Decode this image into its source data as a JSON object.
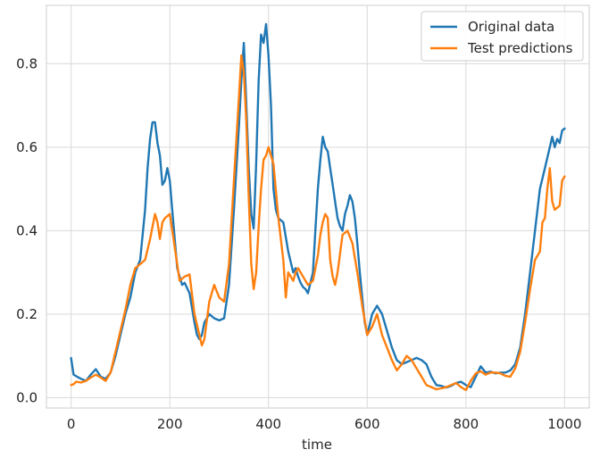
{
  "chart_data": {
    "type": "line",
    "title": "",
    "xlabel": "time",
    "ylabel": "",
    "xlim": [
      -50,
      1050
    ],
    "ylim": [
      -0.025,
      0.94
    ],
    "xticks": [
      0,
      200,
      400,
      600,
      800,
      1000
    ],
    "xtick_labels": [
      "0",
      "200",
      "400",
      "600",
      "800",
      "1000"
    ],
    "yticks": [
      0.0,
      0.2,
      0.4,
      0.6,
      0.8
    ],
    "ytick_labels": [
      "0.0",
      "0.2",
      "0.4",
      "0.6",
      "0.8"
    ],
    "grid": true,
    "legend_position": "top-right",
    "series": [
      {
        "name": "Original data",
        "color": "#1f77b4",
        "x": [
          0,
          5,
          12,
          20,
          30,
          40,
          50,
          60,
          70,
          80,
          90,
          100,
          110,
          120,
          130,
          140,
          150,
          155,
          160,
          165,
          170,
          175,
          180,
          185,
          190,
          195,
          200,
          205,
          210,
          215,
          220,
          225,
          230,
          240,
          250,
          255,
          260,
          265,
          270,
          280,
          290,
          300,
          310,
          320,
          330,
          340,
          345,
          350,
          355,
          360,
          365,
          370,
          375,
          380,
          385,
          390,
          395,
          400,
          405,
          410,
          415,
          420,
          430,
          440,
          450,
          455,
          460,
          465,
          470,
          475,
          480,
          490,
          495,
          500,
          505,
          510,
          515,
          520,
          525,
          530,
          535,
          540,
          545,
          550,
          555,
          560,
          565,
          570,
          575,
          580,
          585,
          590,
          595,
          600,
          610,
          620,
          630,
          640,
          650,
          660,
          670,
          680,
          690,
          700,
          710,
          720,
          730,
          740,
          750,
          760,
          770,
          780,
          790,
          800,
          810,
          820,
          830,
          840,
          850,
          860,
          870,
          880,
          890,
          900,
          910,
          920,
          930,
          940,
          950,
          960,
          970,
          975,
          980,
          985,
          990,
          995,
          1000
        ],
        "y": [
          0.095,
          0.055,
          0.05,
          0.045,
          0.04,
          0.055,
          0.068,
          0.05,
          0.045,
          0.06,
          0.1,
          0.15,
          0.2,
          0.24,
          0.3,
          0.33,
          0.45,
          0.55,
          0.62,
          0.66,
          0.66,
          0.61,
          0.58,
          0.51,
          0.52,
          0.55,
          0.52,
          0.45,
          0.38,
          0.31,
          0.29,
          0.27,
          0.275,
          0.25,
          0.18,
          0.15,
          0.14,
          0.15,
          0.18,
          0.2,
          0.19,
          0.185,
          0.19,
          0.27,
          0.45,
          0.65,
          0.76,
          0.85,
          0.7,
          0.55,
          0.44,
          0.405,
          0.56,
          0.76,
          0.87,
          0.85,
          0.895,
          0.82,
          0.7,
          0.5,
          0.45,
          0.43,
          0.42,
          0.35,
          0.3,
          0.31,
          0.29,
          0.275,
          0.265,
          0.26,
          0.25,
          0.3,
          0.4,
          0.5,
          0.57,
          0.625,
          0.6,
          0.59,
          0.55,
          0.51,
          0.47,
          0.43,
          0.41,
          0.4,
          0.44,
          0.46,
          0.485,
          0.47,
          0.43,
          0.37,
          0.3,
          0.24,
          0.18,
          0.15,
          0.2,
          0.22,
          0.2,
          0.16,
          0.12,
          0.09,
          0.08,
          0.085,
          0.09,
          0.095,
          0.09,
          0.08,
          0.05,
          0.03,
          0.028,
          0.024,
          0.028,
          0.035,
          0.038,
          0.03,
          0.025,
          0.05,
          0.075,
          0.06,
          0.062,
          0.058,
          0.06,
          0.06,
          0.065,
          0.08,
          0.12,
          0.2,
          0.3,
          0.4,
          0.5,
          0.55,
          0.6,
          0.625,
          0.6,
          0.62,
          0.61,
          0.64,
          0.645
        ]
      },
      {
        "name": "Test predictions",
        "color": "#ff7f0e",
        "x": [
          0,
          5,
          10,
          20,
          30,
          40,
          50,
          60,
          70,
          80,
          90,
          100,
          110,
          120,
          130,
          140,
          150,
          160,
          170,
          175,
          180,
          185,
          190,
          200,
          210,
          220,
          230,
          240,
          250,
          260,
          265,
          270,
          280,
          290,
          300,
          310,
          320,
          330,
          340,
          345,
          350,
          355,
          360,
          365,
          370,
          375,
          380,
          385,
          390,
          395,
          400,
          410,
          420,
          430,
          435,
          440,
          450,
          455,
          460,
          470,
          480,
          490,
          500,
          505,
          510,
          515,
          520,
          525,
          530,
          535,
          540,
          550,
          560,
          570,
          580,
          590,
          600,
          610,
          620,
          630,
          640,
          650,
          660,
          670,
          680,
          690,
          700,
          710,
          720,
          730,
          740,
          750,
          760,
          770,
          780,
          790,
          800,
          810,
          820,
          830,
          840,
          850,
          860,
          870,
          880,
          890,
          900,
          910,
          920,
          930,
          940,
          950,
          955,
          960,
          965,
          970,
          975,
          980,
          990,
          995,
          1000
        ],
        "y": [
          0.03,
          0.032,
          0.038,
          0.036,
          0.04,
          0.048,
          0.055,
          0.048,
          0.04,
          0.06,
          0.11,
          0.16,
          0.21,
          0.27,
          0.31,
          0.32,
          0.33,
          0.38,
          0.44,
          0.42,
          0.38,
          0.42,
          0.43,
          0.44,
          0.36,
          0.28,
          0.29,
          0.295,
          0.2,
          0.15,
          0.125,
          0.14,
          0.23,
          0.27,
          0.24,
          0.23,
          0.32,
          0.52,
          0.72,
          0.82,
          0.78,
          0.66,
          0.48,
          0.32,
          0.26,
          0.3,
          0.41,
          0.5,
          0.57,
          0.58,
          0.6,
          0.56,
          0.43,
          0.33,
          0.24,
          0.3,
          0.28,
          0.3,
          0.31,
          0.29,
          0.27,
          0.28,
          0.34,
          0.39,
          0.42,
          0.44,
          0.43,
          0.33,
          0.29,
          0.27,
          0.3,
          0.39,
          0.4,
          0.37,
          0.3,
          0.22,
          0.15,
          0.17,
          0.2,
          0.15,
          0.12,
          0.09,
          0.065,
          0.08,
          0.1,
          0.09,
          0.07,
          0.05,
          0.03,
          0.025,
          0.02,
          0.022,
          0.025,
          0.03,
          0.035,
          0.025,
          0.018,
          0.04,
          0.058,
          0.063,
          0.055,
          0.06,
          0.06,
          0.058,
          0.052,
          0.05,
          0.07,
          0.11,
          0.18,
          0.26,
          0.33,
          0.35,
          0.42,
          0.43,
          0.5,
          0.55,
          0.47,
          0.45,
          0.46,
          0.52,
          0.53
        ]
      }
    ]
  }
}
